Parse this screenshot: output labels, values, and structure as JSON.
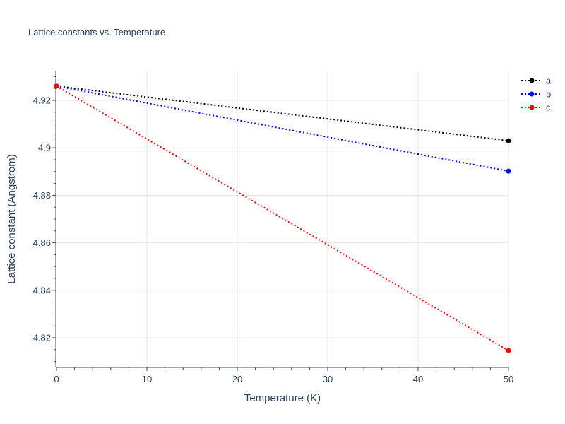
{
  "chart_data": {
    "type": "line",
    "title": "Lattice constants vs. Temperature",
    "xlabel": "Temperature (K)",
    "ylabel": "Lattice constant (Angstrom)",
    "xlim": [
      0,
      50
    ],
    "ylim": [
      4.8075,
      4.9325
    ],
    "x_ticks": [
      0,
      10,
      20,
      30,
      40,
      50
    ],
    "y_ticks": [
      4.82,
      4.84,
      4.86,
      4.88,
      4.9,
      4.92
    ],
    "x_tick_labels": [
      "0",
      "10",
      "20",
      "30",
      "40",
      "50"
    ],
    "y_tick_labels": [
      "4.82",
      "4.84",
      "4.86",
      "4.88",
      "4.9",
      "4.92"
    ],
    "grid": true,
    "legend_position": "top-right",
    "series": [
      {
        "name": "a",
        "color": "#000000",
        "x": [
          0,
          50
        ],
        "y": [
          4.926,
          4.903
        ]
      },
      {
        "name": "b",
        "color": "#0000ff",
        "x": [
          0,
          50
        ],
        "y": [
          4.926,
          4.8902
        ]
      },
      {
        "name": "c",
        "color": "#ff0000",
        "x": [
          0,
          50
        ],
        "y": [
          4.926,
          4.8146
        ]
      }
    ]
  }
}
